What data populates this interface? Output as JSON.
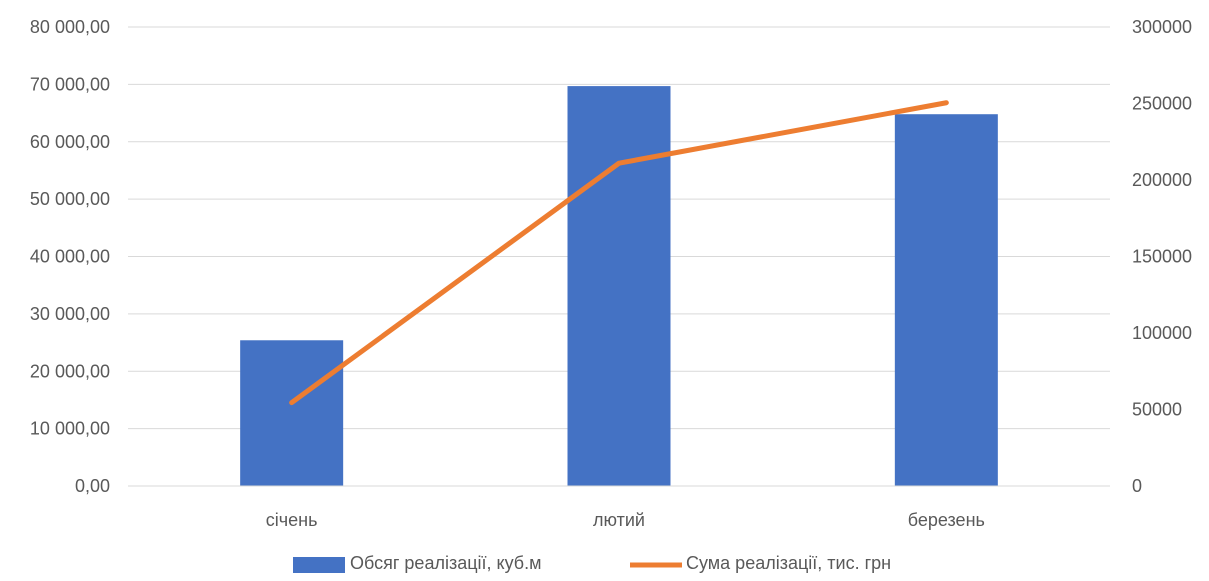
{
  "chart_data": {
    "type": "bar+line",
    "categories": [
      "січень",
      "лютий",
      "березень"
    ],
    "series": [
      {
        "name": "Обсяг реалізації, куб.м",
        "type": "bar",
        "axis": "left",
        "color": "#4472C4",
        "values": [
          25400,
          69700,
          64800
        ]
      },
      {
        "name": "Сума реалізації, тис. грн",
        "type": "line",
        "axis": "right",
        "color": "#ED7D31",
        "values": [
          54500,
          211000,
          250500
        ]
      }
    ],
    "y_left": {
      "ylim": [
        0,
        80000
      ],
      "ticks": [
        0,
        10000,
        20000,
        30000,
        40000,
        50000,
        60000,
        70000,
        80000
      ],
      "tick_labels": [
        "0,00",
        "10 000,00",
        "20 000,00",
        "30 000,00",
        "40 000,00",
        "50 000,00",
        "60 000,00",
        "70 000,00",
        "80 000,00"
      ]
    },
    "y_right": {
      "ylim": [
        0,
        300000
      ],
      "ticks": [
        0,
        50000,
        100000,
        150000,
        200000,
        250000,
        300000
      ],
      "tick_labels": [
        "0",
        "50000",
        "100000",
        "150000",
        "200000",
        "250000",
        "300000"
      ]
    },
    "grid": true,
    "legend": "bottom",
    "title": "",
    "xlabel": "",
    "ylabel": ""
  }
}
